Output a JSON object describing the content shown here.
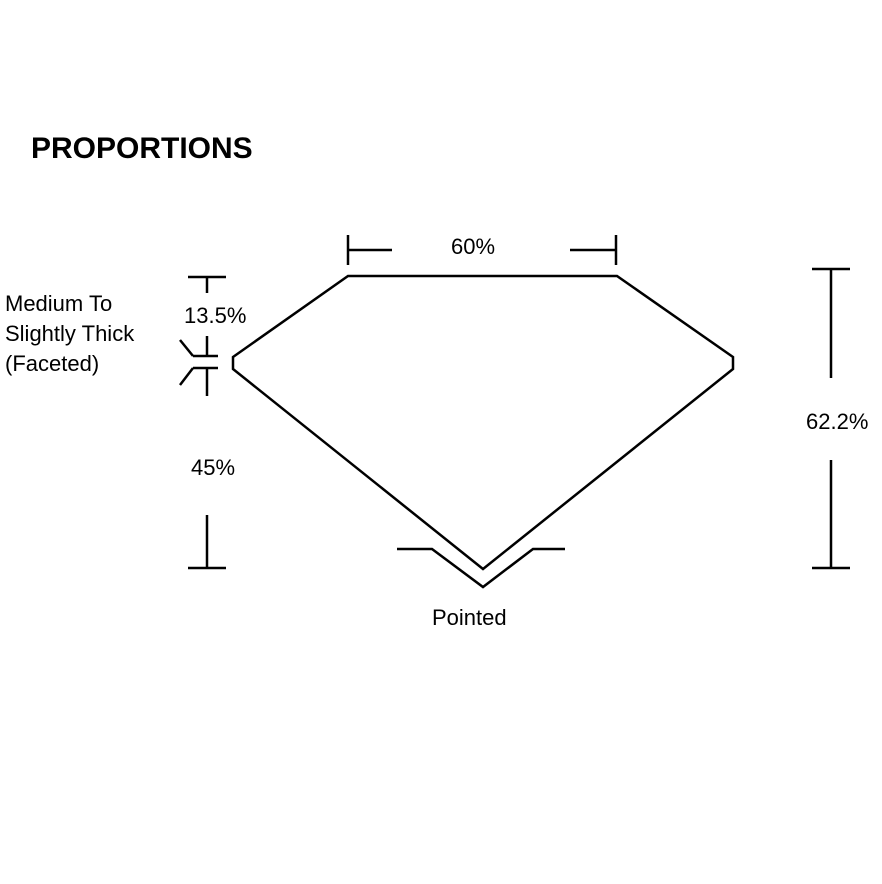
{
  "title": "PROPORTIONS",
  "labels": {
    "table": "60%",
    "crown": "13.5%",
    "girdle": [
      "Medium To",
      "Slightly Thick",
      "(Faceted)"
    ],
    "pavilion": "45%",
    "depth": "62.2%",
    "culet": "Pointed"
  },
  "colors": {
    "line": "#000000",
    "background": "#ffffff"
  }
}
